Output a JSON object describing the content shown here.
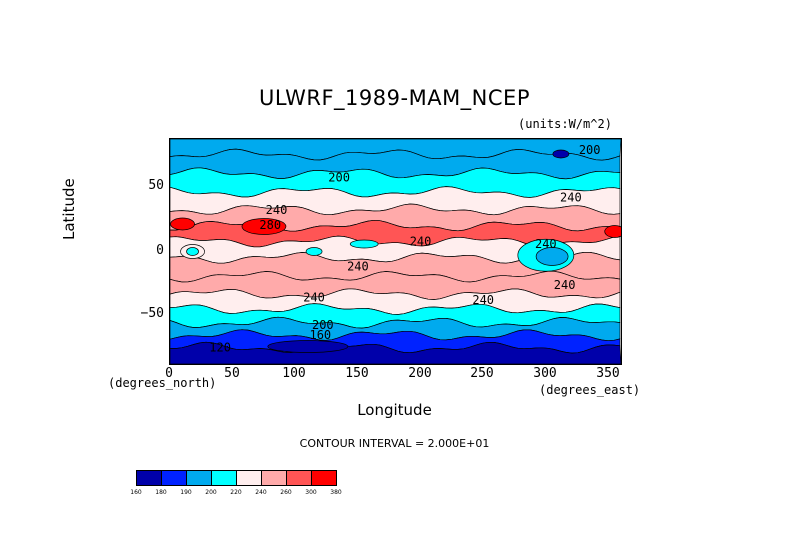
{
  "title": "ULWRF_1989-MAM_NCEP",
  "units": "(units:W/m^2)",
  "xlabel": "Longitude",
  "ylabel": "Latitude",
  "x_units_label": "(degrees_east)",
  "y_units_label": "(degrees_north)",
  "contour_interval": "CONTOUR INTERVAL = 2.000E+01",
  "x_ticks": [
    "0",
    "50",
    "100",
    "150",
    "200",
    "250",
    "300",
    "350"
  ],
  "y_ticks": [
    "50",
    "0",
    "−50"
  ],
  "contour_labels": [
    "200",
    "200",
    "240",
    "240",
    "240",
    "240",
    "240",
    "240",
    "280",
    "200",
    "160",
    "120",
    "240",
    "240"
  ],
  "colorbar": {
    "labels": [
      "160",
      "180",
      "190",
      "200",
      "220",
      "240",
      "260",
      "300",
      "380"
    ],
    "colors": [
      "#0000aa",
      "#0022ff",
      "#00aaee",
      "#00ffff",
      "#ffeeee",
      "#ffaaaa",
      "#ff5555",
      "#ff0000"
    ]
  },
  "map_data": {
    "type": "filled-contour",
    "lon_range": [
      0,
      360
    ],
    "lat_range": [
      -90,
      90
    ],
    "bands": [
      {
        "lat": 85,
        "level": "200"
      },
      {
        "lat": 70,
        "level": "200"
      },
      {
        "lat": 55,
        "level": "220"
      },
      {
        "lat": 40,
        "level": "240"
      },
      {
        "lat": 27,
        "level": "260"
      },
      {
        "lat": 14,
        "level": "280"
      },
      {
        "lat": 2,
        "level": "240"
      },
      {
        "lat": -12,
        "level": "260"
      },
      {
        "lat": -28,
        "level": "260"
      },
      {
        "lat": -40,
        "level": "240"
      },
      {
        "lat": -52,
        "level": "220"
      },
      {
        "lat": -62,
        "level": "200"
      },
      {
        "lat": -72,
        "level": "180"
      },
      {
        "lat": -82,
        "level": "160"
      }
    ]
  }
}
